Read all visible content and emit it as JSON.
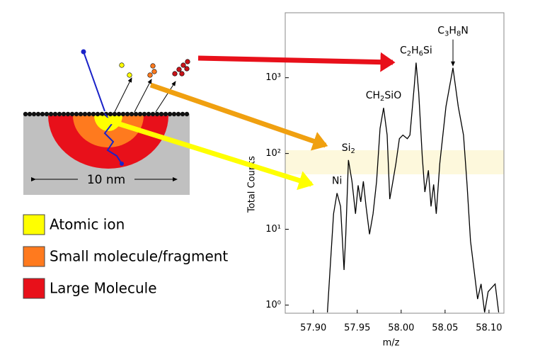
{
  "diagram": {
    "scale_label": "10 nm",
    "legend": [
      {
        "label": "Atomic ion",
        "color": "#ffff00"
      },
      {
        "label": "Small molecule/fragment",
        "color": "#ff7a1e"
      },
      {
        "label": "Large Molecule",
        "color": "#e8101a"
      }
    ]
  },
  "chart_data": {
    "type": "line",
    "color": "#000000",
    "xlabel": "m/z",
    "ylabel": "Total Counts",
    "log_y": true,
    "xlim": [
      57.868,
      58.117
    ],
    "ylim": [
      0.78,
      7200
    ],
    "xticks": [
      {
        "value": 57.9,
        "label": "57.90"
      },
      57.95,
      {
        "value": 58.0,
        "label": "58.00"
      },
      58.05,
      {
        "value": 58.1,
        "label": "58.10"
      }
    ],
    "yticks": [
      {
        "value": 1,
        "label": "10⁰"
      },
      {
        "value": 10,
        "label": "10¹"
      },
      {
        "value": 100,
        "label": "10²"
      },
      {
        "value": 1000,
        "label": "10³"
      }
    ],
    "x": [
      57.916,
      57.919,
      57.923,
      57.927,
      57.931,
      57.935,
      57.937,
      57.94,
      57.944,
      57.948,
      57.951,
      57.954,
      57.957,
      57.96,
      57.964,
      57.968,
      57.972,
      57.976,
      57.98,
      57.984,
      57.987,
      57.99,
      57.994,
      57.998,
      58.002,
      58.007,
      58.01,
      58.015,
      58.017,
      58.02,
      58.024,
      58.027,
      58.031,
      58.034,
      58.037,
      58.04,
      58.044,
      58.051,
      58.059,
      58.065,
      58.071,
      58.075,
      58.079,
      58.083,
      58.087,
      58.091,
      58.095,
      58.099,
      58.107,
      58.111
    ],
    "values": [
      0.8,
      2.9,
      16,
      30,
      20,
      2.9,
      8.6,
      82,
      43,
      16,
      38,
      23,
      43,
      20,
      8.6,
      16,
      43,
      215,
      400,
      175,
      25,
      39,
      74,
      157,
      175,
      157,
      175,
      790,
      1580,
      640,
      92,
      31,
      60,
      20,
      39,
      16,
      74,
      415,
      1350,
      415,
      175,
      39,
      7,
      2.9,
      1.2,
      1.9,
      0.8,
      1.5,
      1.9,
      0.8
    ],
    "annotations": [
      {
        "text": "Ni",
        "x": 57.927,
        "y": 30
      },
      {
        "text": "Si2",
        "x": 57.94,
        "y": 82
      },
      {
        "text": "CH2SiO",
        "x": 57.98,
        "y": 400
      },
      {
        "text": "C2H6Si",
        "x": 58.017,
        "y": 1580
      },
      {
        "text": "C3H8N",
        "x": 58.059,
        "y": 1350
      }
    ]
  }
}
